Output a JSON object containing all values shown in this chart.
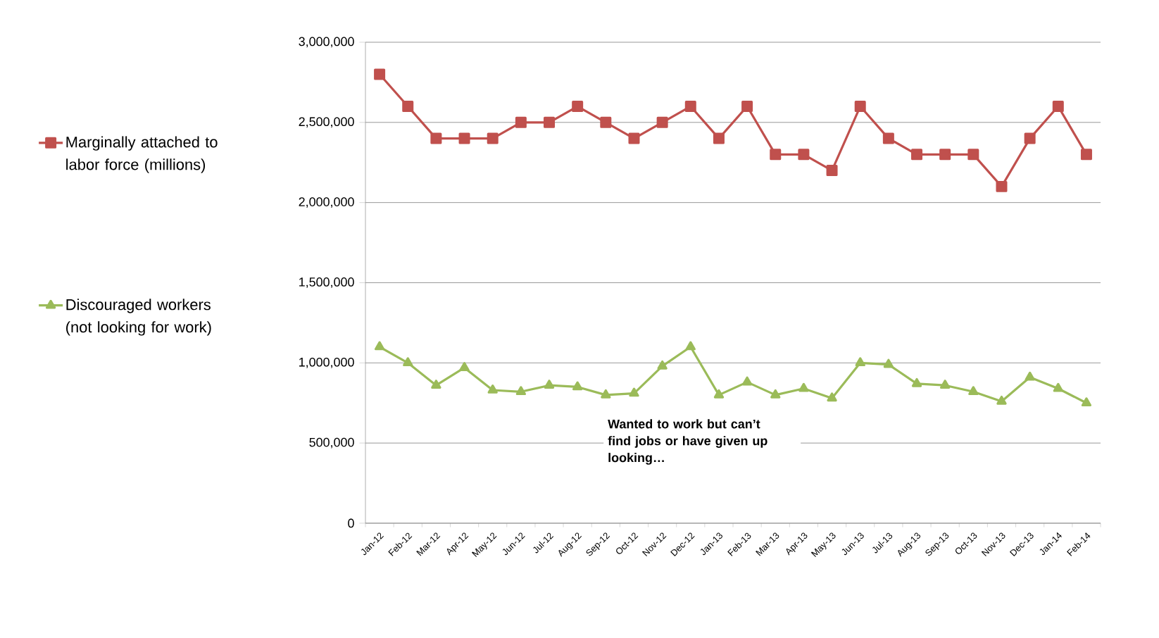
{
  "chart_data": {
    "type": "line",
    "categories": [
      "Jan-12",
      "Feb-12",
      "Mar-12",
      "Apr-12",
      "May-12",
      "Jun-12",
      "Jul-12",
      "Aug-12",
      "Sep-12",
      "Oct-12",
      "Nov-12",
      "Dec-12",
      "Jan-13",
      "Feb-13",
      "Mar-13",
      "Apr-13",
      "May-13",
      "Jun-13",
      "Jul-13",
      "Aug-13",
      "Sep-13",
      "Oct-13",
      "Nov-13",
      "Dec-13",
      "Jan-14",
      "Feb-14"
    ],
    "series": [
      {
        "name": "Marginally attached to labor force (millions)",
        "color": "#c0504d",
        "marker": "square",
        "values": [
          2800000,
          2600000,
          2400000,
          2400000,
          2400000,
          2500000,
          2500000,
          2600000,
          2500000,
          2400000,
          2500000,
          2600000,
          2400000,
          2600000,
          2300000,
          2300000,
          2200000,
          2600000,
          2400000,
          2300000,
          2300000,
          2300000,
          2100000,
          2400000,
          2600000,
          2300000
        ]
      },
      {
        "name": "Discouraged workers (not looking for work)",
        "color": "#9bbb59",
        "marker": "triangle",
        "values": [
          1100000,
          1000000,
          860000,
          970000,
          830000,
          820000,
          860000,
          850000,
          800000,
          810000,
          980000,
          1100000,
          800000,
          880000,
          800000,
          840000,
          780000,
          1000000,
          990000,
          870000,
          860000,
          820000,
          760000,
          910000,
          840000,
          750000
        ]
      }
    ],
    "ylim": [
      0,
      3000000
    ],
    "yticks": [
      0,
      {
        "value": 500000,
        "label": "500,000"
      },
      {
        "value": 1000000,
        "label": "1,000,000"
      },
      {
        "value": 1500000,
        "label": "1,500,000"
      },
      {
        "value": 2000000,
        "label": "2,000,000"
      },
      {
        "value": 2500000,
        "label": "2,500,000"
      },
      {
        "value": 3000000,
        "label": "3,000,000"
      }
    ],
    "grid": "y",
    "legend": "left",
    "line_style": "solid",
    "annotations": [
      "**Wanted to work but can’t find jobs or have given up looking…**"
    ]
  }
}
